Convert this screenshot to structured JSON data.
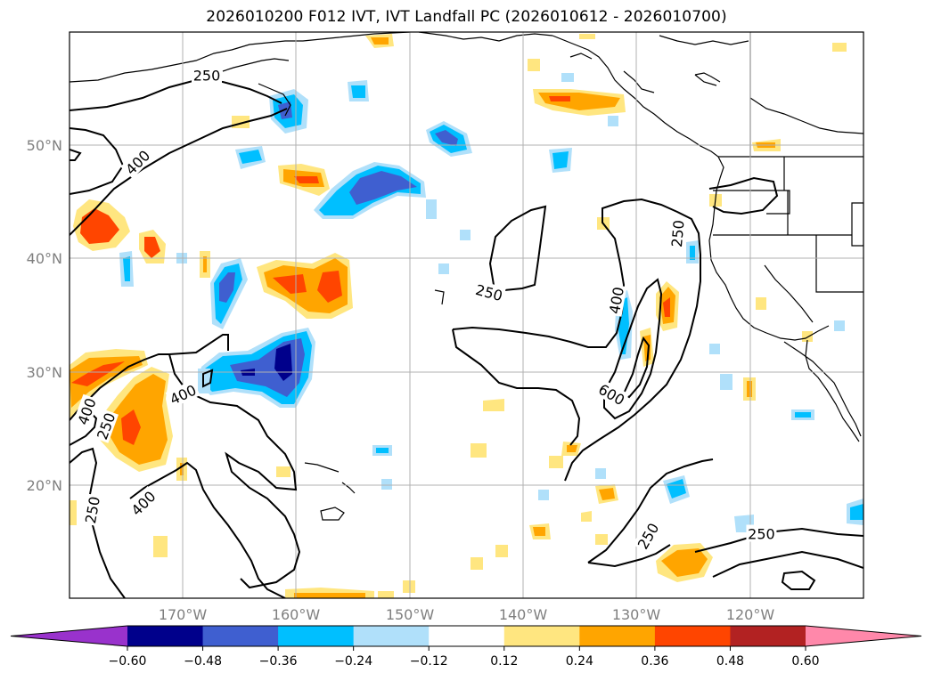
{
  "title": "2026010200 F012 IVT, IVT Landfall PC (2026010612 - 2026010700)",
  "lat_labels": [
    "50°N",
    "40°N",
    "30°N",
    "20°N"
  ],
  "lon_labels": [
    "170°W",
    "160°W",
    "150°W",
    "140°W",
    "130°W",
    "120°W"
  ],
  "extent": {
    "lon_min": -180,
    "lon_max": -110,
    "lat_min": 10,
    "lat_max": 60
  },
  "contour_labels": [
    {
      "text": "250",
      "lon": -167.9,
      "lat": 56.2,
      "rot": 0
    },
    {
      "text": "400",
      "lon": -174,
      "lat": 48.5,
      "rot": -45
    },
    {
      "text": "250",
      "lon": -143,
      "lat": 37,
      "rot": 15
    },
    {
      "text": "400",
      "lon": -131.8,
      "lat": 36.3,
      "rot": -80
    },
    {
      "text": "600",
      "lon": -132.2,
      "lat": 28,
      "rot": 30
    },
    {
      "text": "250",
      "lon": -126.4,
      "lat": 42.2,
      "rot": -85
    },
    {
      "text": "400",
      "lon": -178.5,
      "lat": 26.5,
      "rot": -70
    },
    {
      "text": "250",
      "lon": -176.8,
      "lat": 25.2,
      "rot": -70
    },
    {
      "text": "400",
      "lon": -170,
      "lat": 28,
      "rot": -25
    },
    {
      "text": "400",
      "lon": -173.5,
      "lat": 18.4,
      "rot": -45
    },
    {
      "text": "250",
      "lon": -178,
      "lat": 17.8,
      "rot": -80
    },
    {
      "text": "250",
      "lon": -129,
      "lat": 15.5,
      "rot": -60
    },
    {
      "text": "250",
      "lon": -119,
      "lat": 15.7,
      "rot": 0
    }
  ],
  "colorbar": {
    "ticks": [
      "−0.60",
      "−0.48",
      "−0.36",
      "−0.24",
      "−0.12",
      "0.12",
      "0.24",
      "0.36",
      "0.48",
      "0.60"
    ],
    "colors": [
      "#9932cc",
      "#00008b",
      "#3f5fd0",
      "#00bfff",
      "#b0e0fa",
      "#ffffff",
      "#ffe680",
      "#ffa500",
      "#ff4500",
      "#b22222",
      "#ff88aa"
    ]
  }
}
